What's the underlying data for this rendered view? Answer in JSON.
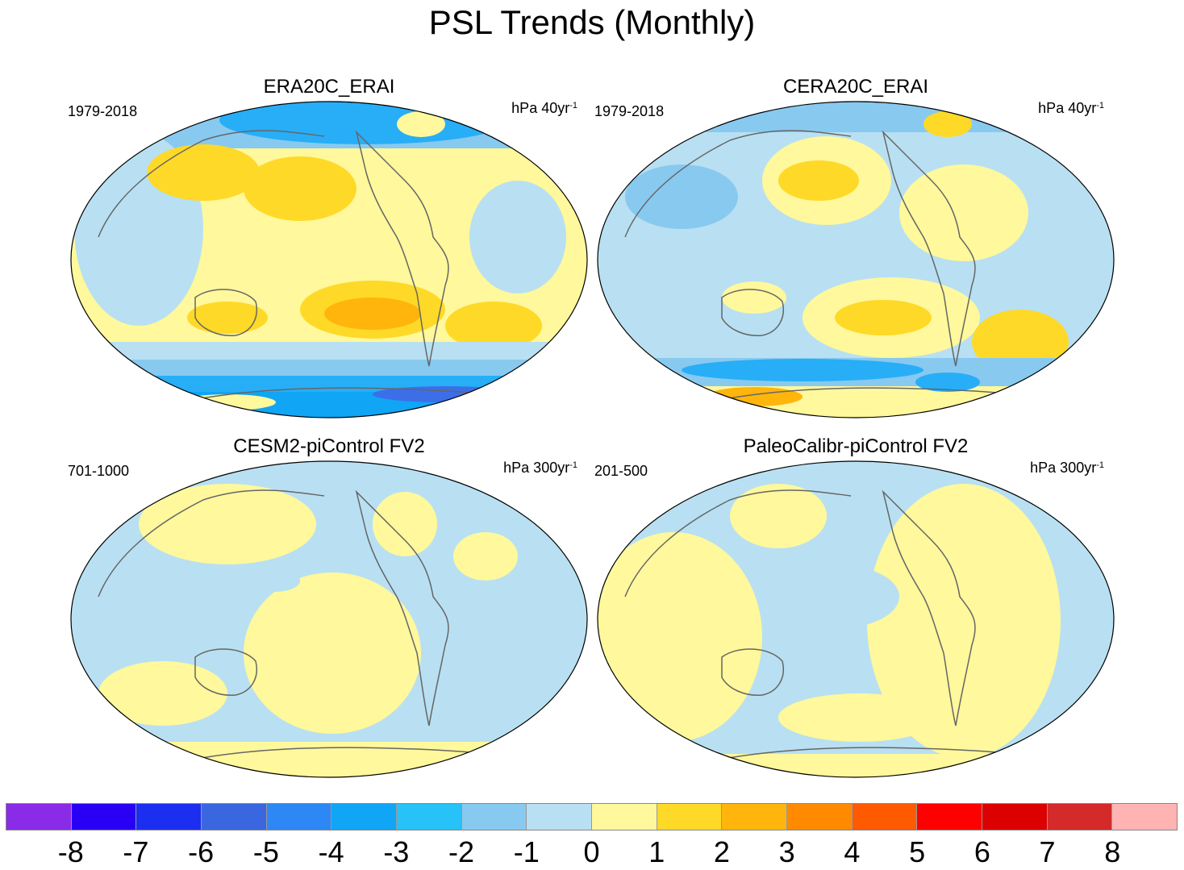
{
  "title": "PSL Trends (Monthly)",
  "colors": {
    "blue3": "#3c6ee8",
    "blue2": "#27aef7",
    "blue1": "#88c9f0",
    "blue0": "#b8e0f2",
    "yel0": "#fff89c",
    "yel1": "#ffd927",
    "yel2": "#ffb50b",
    "orange": "#ff8a00",
    "red": "#ff4a00",
    "land_outline": "#666666"
  },
  "panels": [
    {
      "title": "ERA20C_ERAI",
      "period": "1979-2018",
      "unit_base": "hPa 40yr",
      "unit_exp": "-1"
    },
    {
      "title": "CERA20C_ERAI",
      "period": "1979-2018",
      "unit_base": "hPa 40yr",
      "unit_exp": "-1"
    },
    {
      "title": "CESM2-piControl FV2",
      "period": "701-1000",
      "unit_base": "hPa 300yr",
      "unit_exp": "-1"
    },
    {
      "title": "PaleoCalibr-piControl FV2",
      "period": "201-500",
      "unit_base": "hPa 300yr",
      "unit_exp": "-1"
    }
  ],
  "colorbar": {
    "labels": [
      "-8",
      "-7",
      "-6",
      "-5",
      "-4",
      "-3",
      "-2",
      "-1",
      "0",
      "1",
      "2",
      "3",
      "4",
      "5",
      "6",
      "7",
      "8"
    ],
    "colors": [
      "#8a2be8",
      "#2a00f5",
      "#1c2ef0",
      "#3a67e0",
      "#2d88f5",
      "#10a5f5",
      "#26c2f8",
      "#88c9f0",
      "#b8e0f2",
      "#fff89c",
      "#ffd927",
      "#ffb50b",
      "#ff8a00",
      "#ff5a00",
      "#ff0000",
      "#dd0000",
      "#d42a2a",
      "#ffb3b3"
    ]
  }
}
